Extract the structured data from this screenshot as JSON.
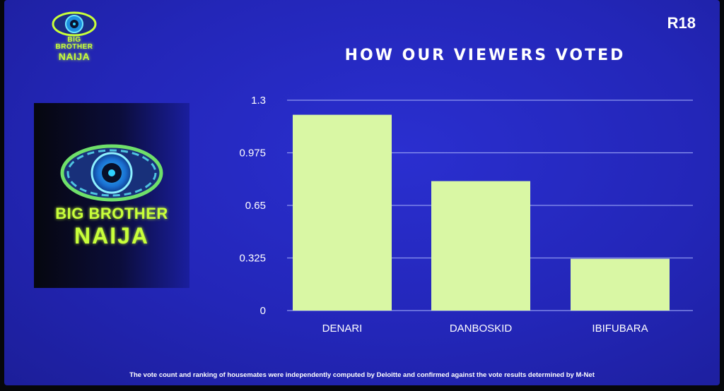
{
  "header": {
    "rating": "R18",
    "logo_line1": "BIG BROTHER",
    "logo_line2": "NAIJA"
  },
  "panel": {
    "logo_line1": "BIG BROTHER",
    "logo_line2": "NAIJA"
  },
  "colors": {
    "background": "#2326b8",
    "bar": "#d9f7a4",
    "logo_green": "#c8ff3a",
    "grid": "#8e97f0"
  },
  "chart_data": {
    "type": "bar",
    "title": "HOW OUR VIEWERS VOTED",
    "categories": [
      "DENARI",
      "DANBOSKID",
      "IBIFUBARA"
    ],
    "values": [
      1.21,
      0.8,
      0.32
    ],
    "yticks": [
      "0",
      "0.325",
      "0.65",
      "0.975",
      "1.3"
    ],
    "ylim": [
      0,
      1.3
    ],
    "grid": true,
    "legend": "none"
  },
  "footnote": "The vote count and ranking of housemates were independently computed by Deloitte and confirmed against the vote results determined by M-Net"
}
